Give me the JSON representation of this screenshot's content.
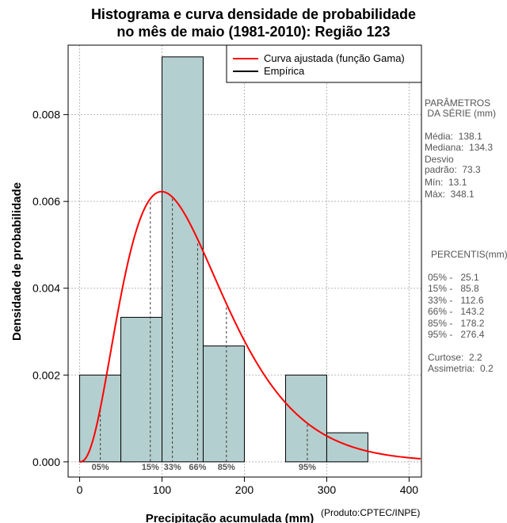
{
  "chart_data": {
    "type": "bar",
    "title_line1": "Histograma e curva densidade de probabilidade",
    "title_line2": "no mês de maio (1981-2010): Região 123",
    "xlabel": "Precipitação acumulada (mm)",
    "ylabel": "Densidade de probabilidade",
    "credit": "(Produto:CPTEC/INPE)",
    "xlim": [
      -14,
      415
    ],
    "ylim": [
      -0.00035,
      0.0096
    ],
    "xticks": [
      0,
      100,
      200,
      300,
      400
    ],
    "xtick_labels": [
      "0",
      "100",
      "200",
      "300",
      "400"
    ],
    "yticks": [
      0.0,
      0.002,
      0.004,
      0.006,
      0.008
    ],
    "ytick_labels": [
      "0.000",
      "0.002",
      "0.004",
      "0.006",
      "0.008"
    ],
    "bins": [
      {
        "start": 0,
        "end": 50,
        "density": 0.002
      },
      {
        "start": 50,
        "end": 100,
        "density": 0.00333
      },
      {
        "start": 100,
        "end": 150,
        "density": 0.00933
      },
      {
        "start": 150,
        "end": 200,
        "density": 0.00267
      },
      {
        "start": 200,
        "end": 250,
        "density": 0.0
      },
      {
        "start": 250,
        "end": 300,
        "density": 0.002
      },
      {
        "start": 300,
        "end": 350,
        "density": 0.00067
      }
    ],
    "gamma_fit": {
      "shape": 3.57,
      "scale": 38.7
    },
    "percentile_marks": [
      {
        "label": "05%",
        "x": 25.1,
        "density": 0.0012
      },
      {
        "label": "15%",
        "x": 85.8,
        "density": 0.00598
      },
      {
        "label": "33%",
        "x": 112.6,
        "density": 0.00606
      },
      {
        "label": "66%",
        "x": 143.2,
        "density": 0.00503
      },
      {
        "label": "85%",
        "x": 178.2,
        "density": 0.00356
      },
      {
        "label": "95%",
        "x": 276.4,
        "density": 0.00086
      }
    ],
    "legend": [
      {
        "label": "Curva ajustada (função Gama)",
        "color": "#ff0000"
      },
      {
        "label": "Empírica",
        "color": "#000000"
      }
    ],
    "bar_color": "#b4cfcf",
    "curve_color": "#ff0000"
  },
  "side_panel": {
    "params_header": "PARÂMETROS\n DA SÉRIE (mm)",
    "media": "Média:  138.1",
    "mediana": "Mediana:  134.3",
    "desvio": "Desvio\npadrão:  73.3",
    "min": "Mín:  13.1",
    "max": "Máx:  348.1",
    "percentis_header": "PERCENTIS(mm)",
    "p05": "05% -   25.1",
    "p15": "15% -   85.8",
    "p33": "33% -   112.6",
    "p66": "66% -   143.2",
    "p85": "85% -   178.2",
    "p95": "95% -   276.4",
    "curtose": "Curtose:  2.2",
    "assimetria": "Assimetria:  0.2"
  }
}
